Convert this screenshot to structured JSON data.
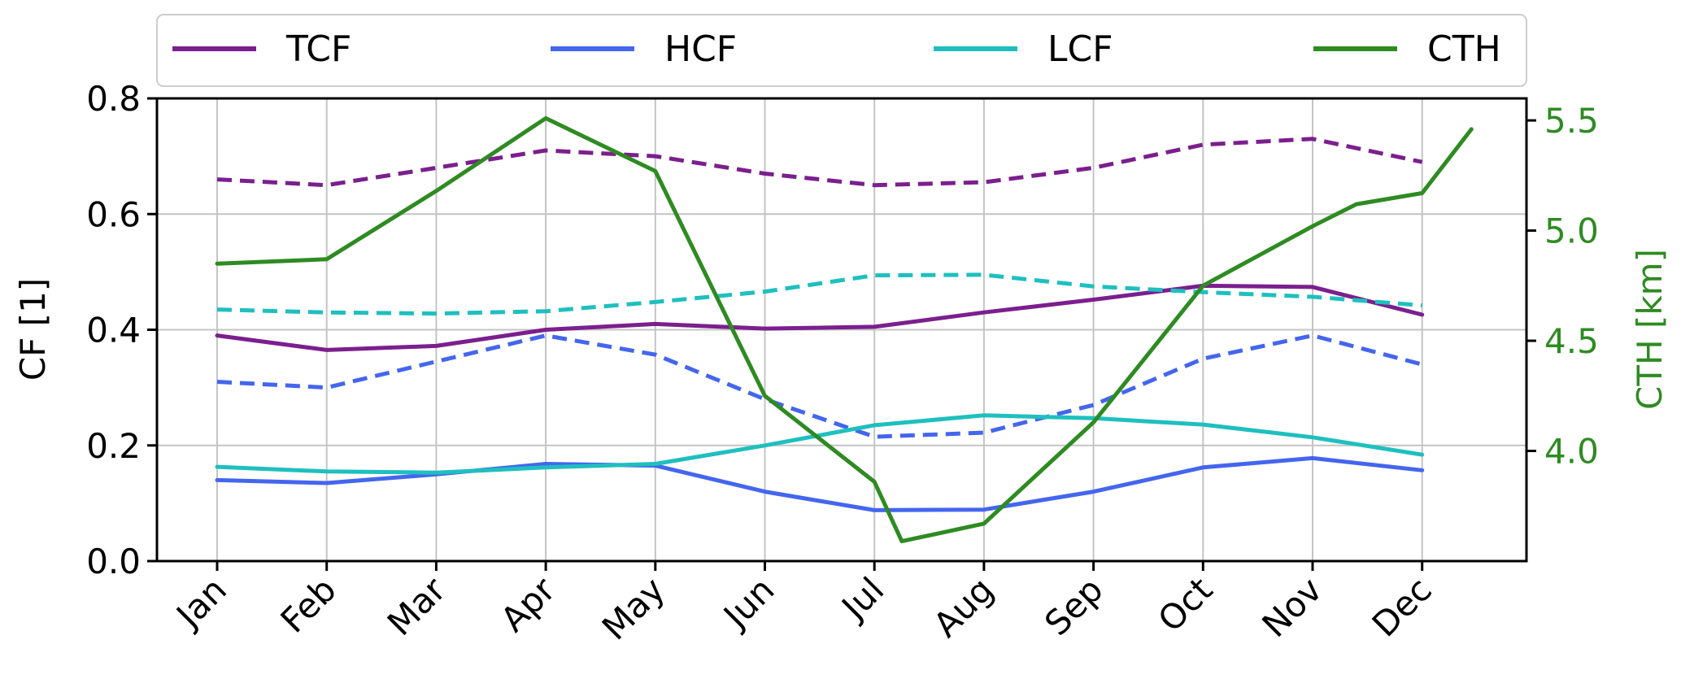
{
  "chart_data": {
    "type": "line",
    "categories": [
      "Jan",
      "Feb",
      "Mar",
      "Apr",
      "May",
      "Jun",
      "Jul",
      "Aug",
      "Sep",
      "Oct",
      "Nov",
      "Dec"
    ],
    "y_left": {
      "label": "CF [1]",
      "lim": [
        0,
        0.8
      ],
      "ticks": [
        "0.0",
        "0.2",
        "0.4",
        "0.6",
        "0.8"
      ],
      "tick_values": [
        0,
        0.2,
        0.4,
        0.6,
        0.8
      ]
    },
    "y_right": {
      "label": "CTH [km]",
      "lim": [
        3.5,
        5.6
      ],
      "ticks": [
        "4.0",
        "4.5",
        "5.0",
        "5.5"
      ],
      "tick_values": [
        4.0,
        4.5,
        5.0,
        5.5
      ],
      "color": "#2e8b22"
    },
    "grid": true,
    "legend_position": "top",
    "legend": [
      {
        "name": "TCF",
        "color": "#7b1f8e"
      },
      {
        "name": "HCF",
        "color": "#4466ee"
      },
      {
        "name": "LCF",
        "color": "#1fbfbf"
      },
      {
        "name": "CTH",
        "color": "#2e8b22"
      }
    ],
    "series": [
      {
        "key": "TCF",
        "style": "dashed",
        "axis": "left",
        "color": "#7b1f8e",
        "values": [
          0.66,
          0.65,
          0.68,
          0.71,
          0.7,
          0.67,
          0.65,
          0.655,
          0.68,
          0.72,
          0.73,
          0.69
        ]
      },
      {
        "key": "TCF",
        "style": "solid",
        "axis": "left",
        "color": "#7b1f8e",
        "values": [
          0.39,
          0.365,
          0.372,
          0.4,
          0.41,
          0.402,
          0.405,
          0.43,
          0.452,
          0.476,
          0.474,
          0.426
        ]
      },
      {
        "key": "HCF",
        "style": "dashed",
        "axis": "left",
        "color": "#4466ee",
        "values": [
          0.31,
          0.3,
          0.345,
          0.39,
          0.357,
          0.28,
          0.215,
          0.222,
          0.27,
          0.35,
          0.39,
          0.34
        ]
      },
      {
        "key": "HCF",
        "style": "solid",
        "axis": "left",
        "color": "#4466ee",
        "values": [
          0.14,
          0.135,
          0.15,
          0.168,
          0.165,
          0.12,
          0.088,
          0.089,
          0.12,
          0.162,
          0.178,
          0.157
        ]
      },
      {
        "key": "LCF",
        "style": "dashed",
        "axis": "left",
        "color": "#1fbfbf",
        "values": [
          0.435,
          0.43,
          0.428,
          0.432,
          0.448,
          0.466,
          0.494,
          0.495,
          0.475,
          0.465,
          0.457,
          0.442
        ]
      },
      {
        "key": "LCF",
        "style": "solid",
        "axis": "left",
        "color": "#1fbfbf",
        "values": [
          0.163,
          0.155,
          0.153,
          0.162,
          0.168,
          0.2,
          0.235,
          0.252,
          0.247,
          0.236,
          0.214,
          0.184
        ]
      },
      {
        "key": "CTH",
        "style": "solid",
        "axis": "right",
        "color": "#2e8b22",
        "x": [
          0,
          1,
          2,
          3,
          4,
          5,
          6,
          6.25,
          7,
          8,
          9,
          10,
          10.4,
          11,
          11.45
        ],
        "values": [
          4.85,
          4.87,
          5.18,
          5.51,
          5.27,
          4.25,
          3.86,
          3.59,
          3.67,
          4.13,
          4.75,
          5.02,
          5.12,
          5.17,
          5.46
        ]
      }
    ]
  }
}
